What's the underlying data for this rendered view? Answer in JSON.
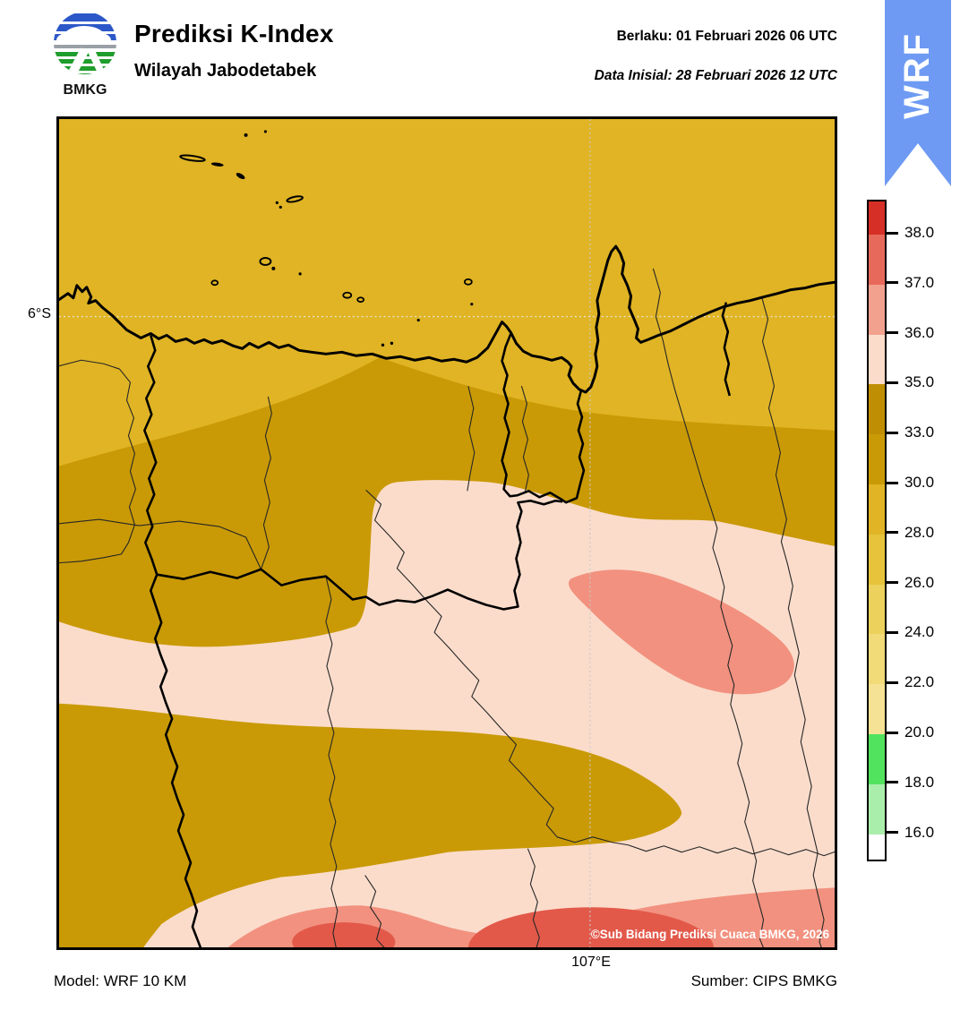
{
  "header": {
    "logo_text": "BMKG",
    "title": "Prediksi K-Index",
    "subtitle": "Wilayah Jabodetabek",
    "valid_line": "Berlaku:  01 Februari 2026 06 UTC",
    "init_line": "Data Inisial:  28 Februari 2026 12 UTC"
  },
  "ribbon": {
    "label": "WRF",
    "color": "#6e9af3"
  },
  "map": {
    "lat_tick": "6°S",
    "lon_tick": "107°E",
    "copyright": "©Sub Bidang Prediksi Cuaca BMKG, 2026"
  },
  "footer": {
    "model": "Model: WRF 10 KM",
    "source": "Sumber: CIPS BMKG"
  },
  "colorbar": {
    "tick_labels": [
      "38.0",
      "37.0",
      "36.0",
      "35.0",
      "33.0",
      "30.0",
      "28.0",
      "26.0",
      "24.0",
      "22.0",
      "20.0",
      "18.0",
      "16.0"
    ],
    "segment_colors": [
      "#d62f26",
      "#e7695b",
      "#f2a18f",
      "#fbdccb",
      "#c08e03",
      "#ca9a06",
      "#e0b424",
      "#e6c33b",
      "#ecd25c",
      "#f1da78",
      "#f6e294",
      "#52e35e",
      "#aaeeab",
      "#ffffff"
    ]
  },
  "map_colors": {
    "sea_gold_28_30": "#e0b424",
    "band_gold_30_33": "#c99a06",
    "pink_35_36": "#fbdccb",
    "salmon_36_37": "#f2917f",
    "red_37_38": "#e2594a"
  }
}
